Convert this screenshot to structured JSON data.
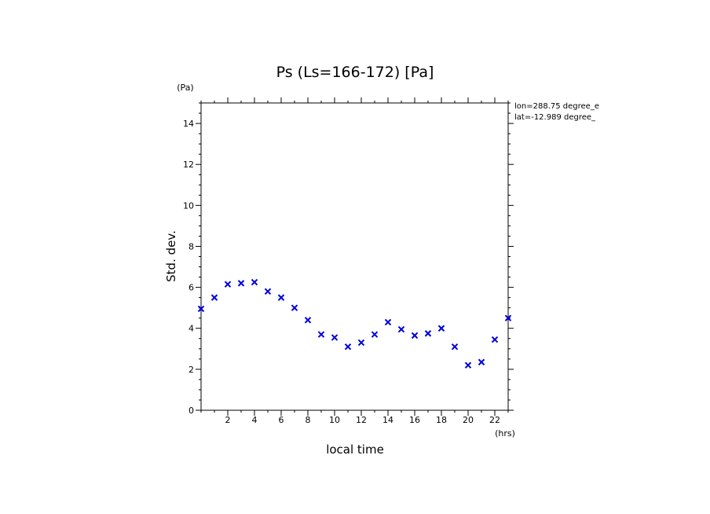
{
  "chart_data": {
    "type": "scatter",
    "title": "Ps (Ls=166-172) [Pa]",
    "xlabel": "local time",
    "ylabel": "Std. dev.",
    "x_unit": "(hrs)",
    "y_unit": "(Pa)",
    "xlim": [
      0,
      23
    ],
    "ylim": [
      0,
      15
    ],
    "x_ticks": [
      2,
      4,
      6,
      8,
      10,
      12,
      14,
      16,
      18,
      20,
      22
    ],
    "y_ticks": [
      0,
      2,
      4,
      6,
      8,
      10,
      12,
      14
    ],
    "annotations": [
      "lon=288.75 degree_e",
      "lat=-12.989 degree_"
    ],
    "marker": "x",
    "marker_color": "#0000dd",
    "grid": false,
    "x": [
      0,
      1,
      2,
      3,
      4,
      5,
      6,
      7,
      8,
      9,
      10,
      11,
      12,
      13,
      14,
      15,
      16,
      17,
      18,
      19,
      20,
      21,
      22,
      23
    ],
    "y": [
      4.95,
      5.5,
      6.15,
      6.2,
      6.25,
      5.8,
      5.5,
      5.0,
      4.4,
      3.7,
      3.55,
      3.1,
      3.3,
      3.7,
      4.3,
      3.95,
      3.65,
      3.75,
      4.0,
      3.1,
      2.2,
      2.35,
      3.45,
      4.5
    ]
  }
}
